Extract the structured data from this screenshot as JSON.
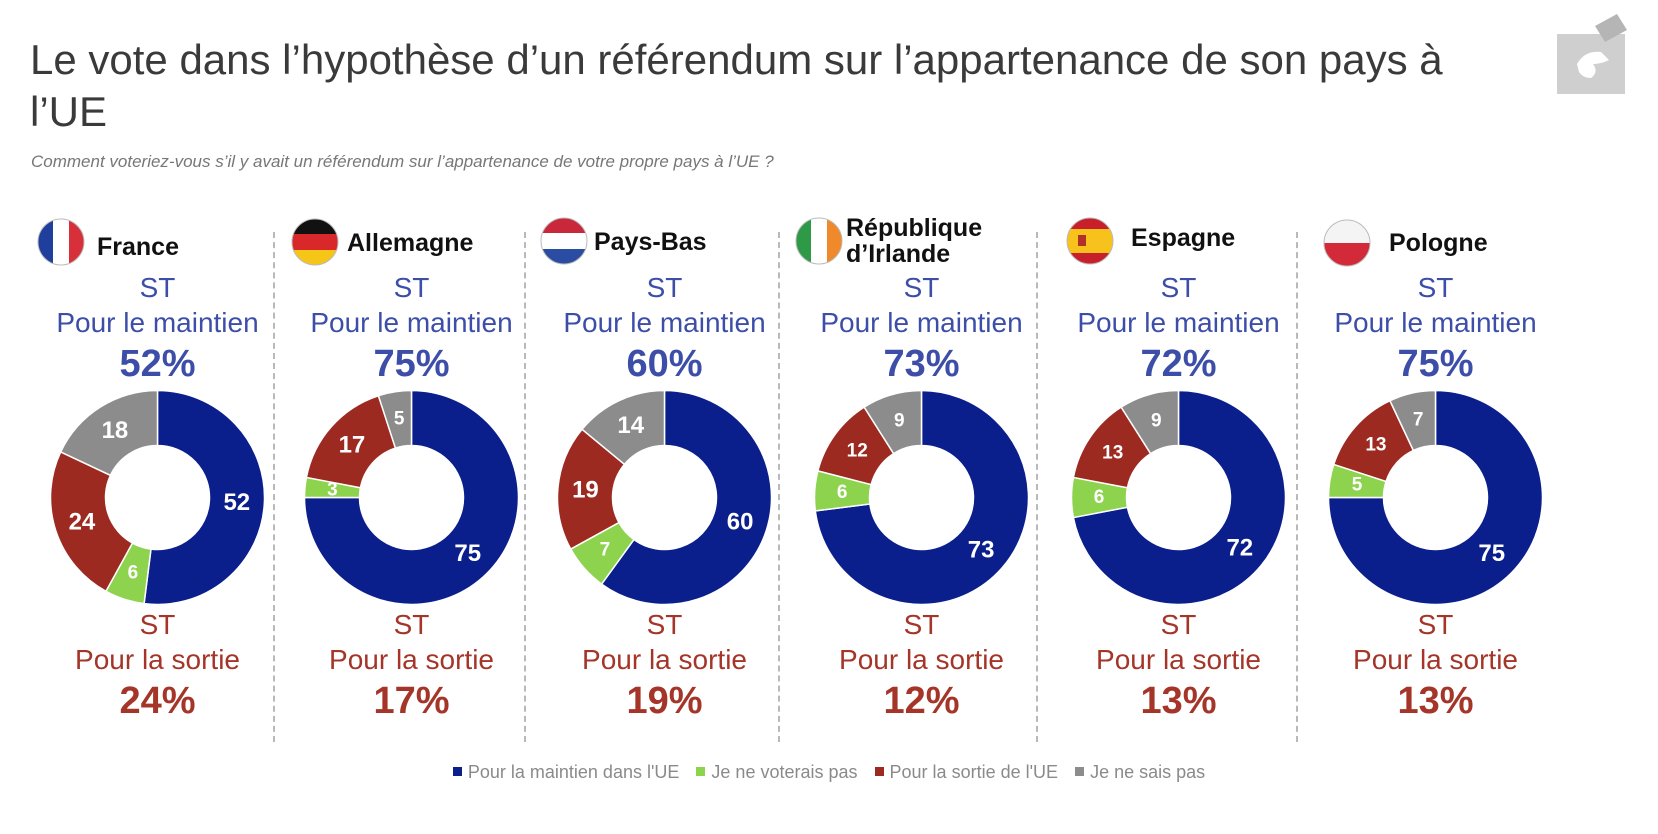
{
  "title": "Le vote dans l’hypothèse d’un référendum sur l’appartenance de son pays à l’UE",
  "subtitle": "Comment voteriez-vous s’il y avait un référendum sur l’appartenance de votre propre pays à l’UE ?",
  "logo_icon": "hand-ballot-icon",
  "labels": {
    "st": "ST",
    "stay": "Pour le maintien",
    "leave": "Pour la sortie"
  },
  "colors": {
    "maintien": "#0a1e8c",
    "voterais_pas": "#8ed34d",
    "sortie": "#9c2a21",
    "ne_sais_pas": "#8c8c8c",
    "stay_text": "#3d4ea8",
    "leave_text": "#a43528"
  },
  "chart_data": {
    "type": "donut",
    "legend": [
      "Pour la maintien dans l'UE",
      "Je ne voterais pas",
      "Pour la sortie de l'UE",
      "Je ne sais pas"
    ],
    "legend_position": "bottom",
    "segment_order": [
      "maintien",
      "voterais_pas",
      "sortie",
      "ne_sais_pas"
    ],
    "panels": [
      {
        "country": "France",
        "flag": "france-flag-icon",
        "stay_pct": "52%",
        "leave_pct": "24%",
        "values": [
          52,
          6,
          24,
          18
        ]
      },
      {
        "country": "Allemagne",
        "flag": "germany-flag-icon",
        "stay_pct": "75%",
        "leave_pct": "17%",
        "values": [
          75,
          3,
          17,
          5
        ]
      },
      {
        "country": "Pays-Bas",
        "flag": "netherlands-flag-icon",
        "stay_pct": "60%",
        "leave_pct": "19%",
        "values": [
          60,
          7,
          19,
          14
        ]
      },
      {
        "country": "République\nd’Irlande",
        "flag": "ireland-flag-icon",
        "stay_pct": "73%",
        "leave_pct": "12%",
        "values": [
          73,
          6,
          12,
          9
        ]
      },
      {
        "country": "Espagne",
        "flag": "spain-flag-icon",
        "stay_pct": "72%",
        "leave_pct": "13%",
        "values": [
          72,
          6,
          13,
          9
        ]
      },
      {
        "country": "Pologne",
        "flag": "poland-flag-icon",
        "stay_pct": "75%",
        "leave_pct": "13%",
        "values": [
          75,
          5,
          13,
          7
        ]
      }
    ]
  }
}
